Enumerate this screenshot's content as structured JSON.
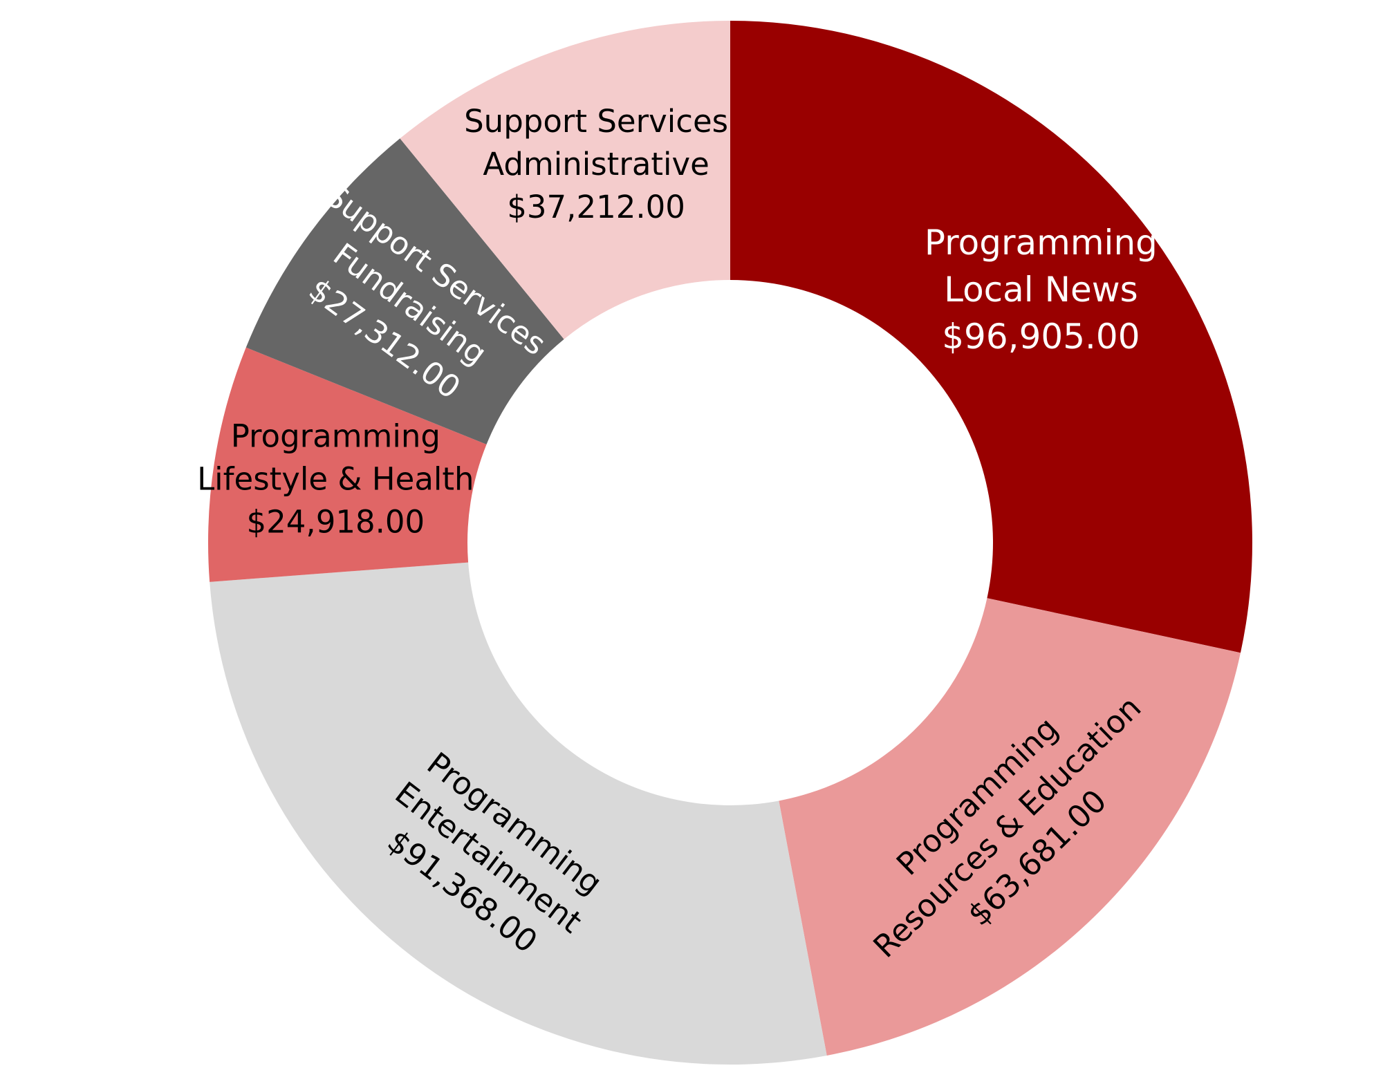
{
  "chart_data": {
    "type": "pie",
    "donut": true,
    "title": "",
    "slices": [
      {
        "category": "Programming",
        "subcategory": "Local News",
        "value": 96905.0,
        "value_label": "$96,905.00",
        "color": "#990000",
        "text_color": "#ffffff"
      },
      {
        "category": "Programming",
        "subcategory": "Resources & Education",
        "value": 63681.0,
        "value_label": "$63,681.00",
        "color": "#ea9999",
        "text_color": "#000000"
      },
      {
        "category": "Programming",
        "subcategory": "Entertainment",
        "value": 91368.0,
        "value_label": "$91,368.00",
        "color": "#d9d9d9",
        "text_color": "#000000"
      },
      {
        "category": "Programming",
        "subcategory": "Lifestyle & Health",
        "value": 24918.0,
        "value_label": "$24,918.00",
        "color": "#e06666",
        "text_color": "#000000"
      },
      {
        "category": "Support Services",
        "subcategory": "Fundraising",
        "value": 27312.0,
        "value_label": "$27,312.00",
        "color": "#666666",
        "text_color": "#ffffff"
      },
      {
        "category": "Support Services",
        "subcategory": "Administrative",
        "value": 37212.0,
        "value_label": "$37,212.00",
        "color": "#f4cccc",
        "text_color": "#000000"
      }
    ]
  }
}
